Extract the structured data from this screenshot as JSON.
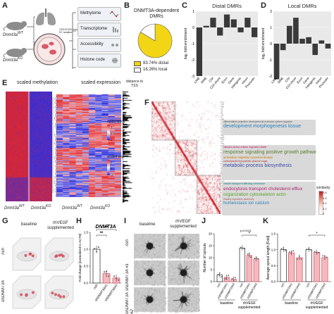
{
  "panels": {
    "A": {
      "letter": "A",
      "mouse_wt": "Dnmt3a",
      "mouse_wt_sup": "WT",
      "mouse_ko": "Dnmt3a",
      "mouse_ko_sup": "KO",
      "isolation_note": "CD31/CD34 lung EC isolation",
      "assays": [
        "Methylome",
        "Transcriptome",
        "Accessibility",
        "Histone code"
      ]
    },
    "B": {
      "letter": "B",
      "title": "DNMT3A-dependent DMRs",
      "legend": [
        {
          "label": "83.74% distal",
          "color": "#f2d515"
        },
        {
          "label": "16.26% local",
          "color": "#ffffff"
        }
      ]
    },
    "C": {
      "letter": "C",
      "title": "Distal DMRs",
      "ylabel": "log₂ fold enrichment",
      "chart_data": {
        "type": "bar",
        "title": "Distal DMRs",
        "ylabel": "log₂ fold enrichment",
        "categories": [
          "LINE",
          "SINE",
          "CGI",
          "CGI shore",
          "Exon",
          "Gene",
          "Intergenic",
          "Intron",
          "Promoter"
        ],
        "values": [
          -3.0,
          0.1,
          0.6,
          -0.5,
          0.8,
          0.5,
          -0.3,
          0.6,
          -0.6
        ],
        "ylim": [
          -3,
          1
        ],
        "yticks": [
          -3,
          -2,
          -1,
          0,
          1
        ]
      }
    },
    "D": {
      "letter": "D",
      "title": "Local DMRs",
      "ylabel": "log₂ fold enrichment",
      "chart_data": {
        "type": "bar",
        "title": "Local DMRs",
        "ylabel": "log₂ fold enrichment",
        "categories": [
          "LINE",
          "SINE",
          "CGI",
          "CGI shore",
          "Exon",
          "Gene",
          "Intergenic",
          "Intron",
          "Promoter"
        ],
        "values": [
          -2.2,
          -0.4,
          1.1,
          1.6,
          0.3,
          0.4,
          -0.7,
          0.2,
          -0.3
        ],
        "ylim": [
          -2,
          2
        ],
        "yticks": [
          -2,
          -1,
          0,
          1,
          2
        ]
      }
    },
    "E": {
      "letter": "E",
      "title_meth": "scaled methylation",
      "title_expr": "scaled expression",
      "distance_label": "distance to TSS",
      "side_methylation": "methylation",
      "side_scaled_exp": "scaled exp.",
      "bottom_wt": "Dnmt3a",
      "bottom_wt_sup": "WT",
      "bottom_ko": "Dnmt3a",
      "bottom_ko_sup": "KO",
      "legend_meth_ticks": [
        "1",
        "0.5",
        "0"
      ],
      "legend_expr_ticks": [
        "2",
        "0",
        "-2"
      ]
    },
    "F": {
      "letter": "F",
      "clusters": [
        {
          "lines": [
            [
              "differentiation projection developmental extension system migration",
              "motility chemotaxis"
            ],
            [
              "development morphogenesis tissue"
            ]
          ]
        },
        {
          "lines": [
            [
              "stimulus stress cellular regulation death"
            ],
            [
              "response signaling positive growth pathway"
            ],
            [
              "activation migration process kinase"
            ],
            [
              "carbohydrate biosynthetic glucose sugar"
            ],
            [
              "metabolic process biosynthesis"
            ]
          ]
        },
        {
          "lines": [
            [
              "vesicle transport trafficking membrane"
            ],
            [
              "endocytosis transport cholesterol efflux"
            ],
            [
              "organization cytoskeleton actin"
            ],
            [
              "binding regulation assembly"
            ],
            [
              "homeostasis ion calcium"
            ]
          ]
        }
      ],
      "similarity_label": "similarity",
      "similarity_ticks": [
        "0.8",
        "0.6",
        "0.4",
        "0.2",
        "0"
      ]
    },
    "G": {
      "letter": "G",
      "col_labels": [
        "baseline",
        "rhVEGF supplemented"
      ],
      "row_labels": [
        "nsh",
        "shDNMT3A"
      ]
    },
    "H": {
      "letter": "H",
      "title": "DNMT3A",
      "ylabel": "Fold change [normalized to ACTB]",
      "xlabels": [
        "nsh",
        "shDNMT3A#1",
        "shDNMT3A#2"
      ],
      "sig": [
        "**",
        "**"
      ],
      "chart_data": {
        "type": "bar",
        "title": "DNMT3A",
        "ylabel": "Fold change [normalized to ACTB]",
        "categories": [
          "nsh",
          "shDNMT3A#1",
          "shDNMT3A#2"
        ],
        "values": [
          1.0,
          0.28,
          0.15
        ],
        "ylim": [
          0,
          1.5
        ],
        "yticks": [
          0.0,
          0.5,
          1.0,
          1.5
        ]
      }
    },
    "I": {
      "letter": "I",
      "col_labels": [
        "baseline",
        "rhVEGF supplemented"
      ],
      "row_labels": [
        "nsh",
        "shDNMT3A #1",
        "shDNMT3A #2"
      ]
    },
    "J": {
      "letter": "J",
      "ylabel": "Number of sprouts",
      "pval": "p=0.0021",
      "sig": "*",
      "group_labels": [
        "baseline",
        "rhVEGF supplemented"
      ],
      "xlabels": [
        "nsh",
        "shDNMT3A#1",
        "shDNMT3A#2",
        "nsh",
        "shDNMT3A#1",
        "shDNMT3A#2"
      ],
      "chart_data": {
        "type": "bar",
        "ylabel": "Number of sprouts",
        "categories": [
          "nsh",
          "shDNMT3A#1",
          "shDNMT3A#2",
          "nsh",
          "shDNMT3A#1",
          "shDNMT3A#2"
        ],
        "values": [
          2.8,
          1.8,
          1.0,
          14.0,
          11.0,
          9.5
        ],
        "ylim": [
          0,
          20
        ],
        "yticks": [
          0,
          5,
          10,
          15,
          20
        ]
      }
    },
    "K": {
      "letter": "K",
      "ylabel": "Average sprout length [Fold]",
      "sig": "*",
      "group_labels": [
        "baseline",
        "rhVEGF supplemented"
      ],
      "xlabels": [
        "nsh",
        "shDNMT3A#1",
        "shDNMT3A#2",
        "nsh",
        "shDNMT3A#1",
        "shDNMT3A#2"
      ],
      "chart_data": {
        "type": "bar",
        "ylabel": "Average sprout length [Fold]",
        "categories": [
          "nsh",
          "shDNMT3A#1",
          "shDNMT3A#2",
          "nsh",
          "shDNMT3A#1",
          "shDNMT3A#2"
        ],
        "values": [
          1.0,
          0.9,
          0.75,
          1.0,
          0.92,
          0.75
        ],
        "ylim": [
          0,
          1.5
        ],
        "yticks": [
          0.0,
          0.5,
          1.0,
          1.5
        ]
      }
    }
  },
  "colors": {
    "bar_dark": "#3a3a3a",
    "pink_bar": "#f3b9bf",
    "pink_dark": "#d14f5c",
    "pie_yellow": "#f2d515",
    "heat_blue": "#2d2fe0",
    "heat_red": "#e3262b"
  }
}
